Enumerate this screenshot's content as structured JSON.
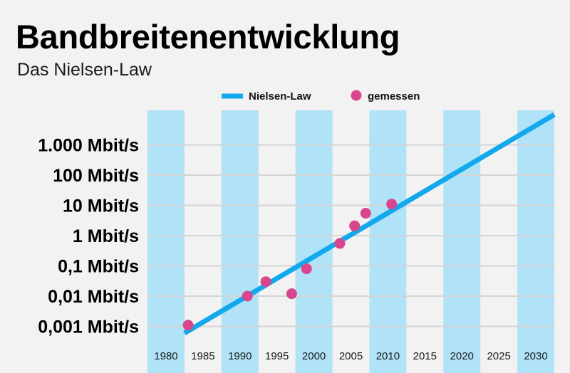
{
  "chart_data": {
    "type": "scatter",
    "title": "Bandbreitenentwicklung",
    "subtitle": "Das Nielsen-Law",
    "xlabel": "",
    "ylabel": "",
    "x_ticks": [
      "1980",
      "1985",
      "1990",
      "1995",
      "2000",
      "2005",
      "2010",
      "2015",
      "2020",
      "2025",
      "2030"
    ],
    "xlim": [
      1977.5,
      2032.5
    ],
    "y_scale": "log",
    "ylim": [
      0.0005,
      15000
    ],
    "y_ticks": [
      0.001,
      0.01,
      0.1,
      1,
      10,
      100,
      1000
    ],
    "y_tick_labels": [
      "0,001 Mbit/s",
      "0,01 Mbit/s",
      "0,1 Mbit/s",
      "1 Mbit/s",
      "10 Mbit/s",
      "100 Mbit/s",
      "1.000 Mbit/s"
    ],
    "grid": "horizontal",
    "background_bands": "alternating light-blue columns behind years 1980, 1990, 2000, 2010, 2020, 2030",
    "legend": {
      "placement": "top",
      "entries": [
        "Nielsen-Law",
        "gemessen"
      ]
    },
    "series": [
      {
        "name": "Nielsen-Law",
        "kind": "line",
        "color": "#12a8ec",
        "x": [
          1982.5,
          2032.5
        ],
        "y": [
          0.0006,
          10000
        ]
      },
      {
        "name": "gemessen",
        "kind": "points",
        "color": "#d9468c",
        "x": [
          1983,
          1991,
          1993.5,
          1997,
          1999,
          2003.5,
          2005.5,
          2007,
          2010.5
        ],
        "y": [
          0.0011,
          0.01,
          0.03,
          0.012,
          0.08,
          0.55,
          2.1,
          5.5,
          11
        ]
      }
    ]
  },
  "colors": {
    "background": "#f2f2f2",
    "band": "#b0e2f8",
    "grid": "#d4d4d4"
  }
}
